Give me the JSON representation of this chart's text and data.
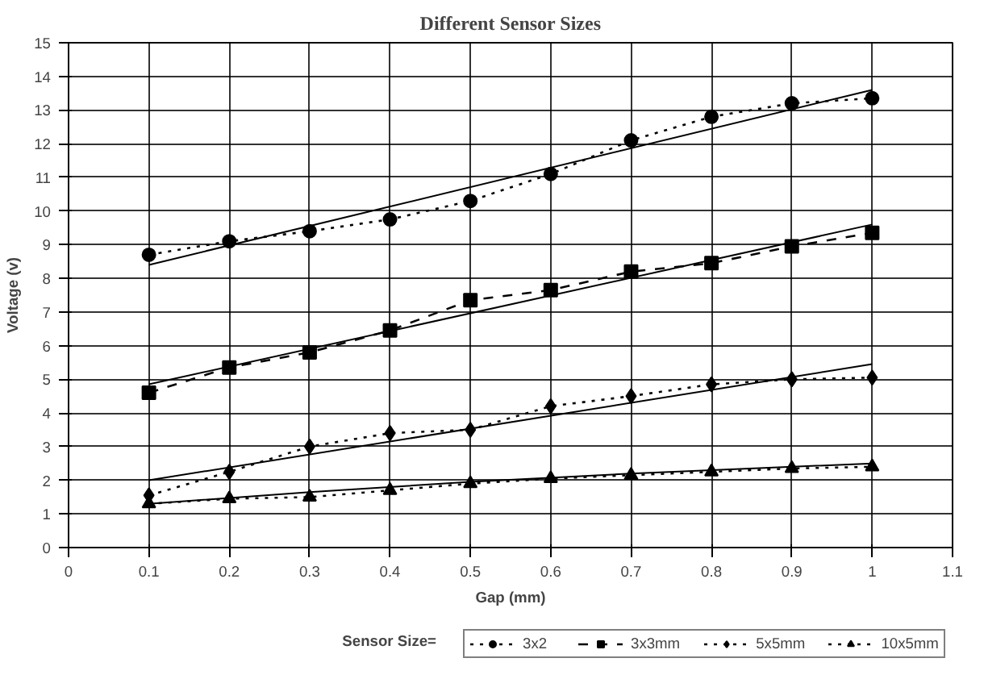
{
  "chart_data": {
    "type": "line",
    "title": "Different Sensor Sizes",
    "xlabel": "Gap (mm)",
    "ylabel": "Voltage (v)",
    "legend_title": "Sensor Size=",
    "x": [
      0.1,
      0.2,
      0.3,
      0.4,
      0.5,
      0.6,
      0.7,
      0.8,
      0.9,
      1.0
    ],
    "series": [
      {
        "name": "3x2",
        "color": "#000000",
        "marker": "circle",
        "line_style": "dotted",
        "values": [
          8.7,
          9.1,
          9.4,
          9.75,
          10.3,
          11.1,
          12.1,
          12.8,
          13.2,
          13.35
        ]
      },
      {
        "name": "3x3mm",
        "color": "#000000",
        "marker": "square",
        "line_style": "dashed",
        "values": [
          4.6,
          5.35,
          5.8,
          6.45,
          7.35,
          7.65,
          8.2,
          8.45,
          8.95,
          9.35
        ]
      },
      {
        "name": "5x5mm",
        "color": "#000000",
        "marker": "diamond",
        "line_style": "dotted",
        "values": [
          1.55,
          2.25,
          3.0,
          3.4,
          3.5,
          4.2,
          4.5,
          4.85,
          5.0,
          5.05
        ]
      },
      {
        "name": "10x5mm",
        "color": "#000000",
        "marker": "triangle",
        "line_style": "dotted",
        "values": [
          1.3,
          1.45,
          1.5,
          1.7,
          1.9,
          2.05,
          2.15,
          2.25,
          2.35,
          2.4
        ]
      },
      {
        "type": "line",
        "color": "#000000",
        "marker": "none",
        "line_style": "solid",
        "x": [
          0.1,
          1.0
        ],
        "values": [
          8.4,
          13.6
        ]
      },
      {
        "type": "line",
        "color": "#000000",
        "marker": "none",
        "line_style": "solid",
        "x": [
          0.1,
          1.0
        ],
        "values": [
          4.85,
          9.6
        ]
      },
      {
        "type": "line",
        "color": "#000000",
        "marker": "none",
        "line_style": "solid",
        "x": [
          0.1,
          1.0
        ],
        "values": [
          2.0,
          5.45
        ]
      },
      {
        "type": "line",
        "color": "#000000",
        "marker": "none",
        "line_style": "solid",
        "x": [
          0.1,
          0.3,
          0.5,
          0.7,
          1.0
        ],
        "values": [
          1.3,
          1.65,
          1.95,
          2.2,
          2.5
        ]
      }
    ],
    "xlim": [
      0,
      1.1
    ],
    "xticks": [
      0,
      0.1,
      0.2,
      0.3,
      0.4,
      0.5,
      0.6,
      0.7,
      0.8,
      0.9,
      1,
      1.1
    ],
    "ylim": [
      0,
      15
    ],
    "yticks": [
      0,
      1,
      2,
      3,
      4,
      5,
      6,
      7,
      8,
      9,
      10,
      11,
      12,
      13,
      14,
      15
    ],
    "grid": true,
    "legend": "bottom"
  }
}
